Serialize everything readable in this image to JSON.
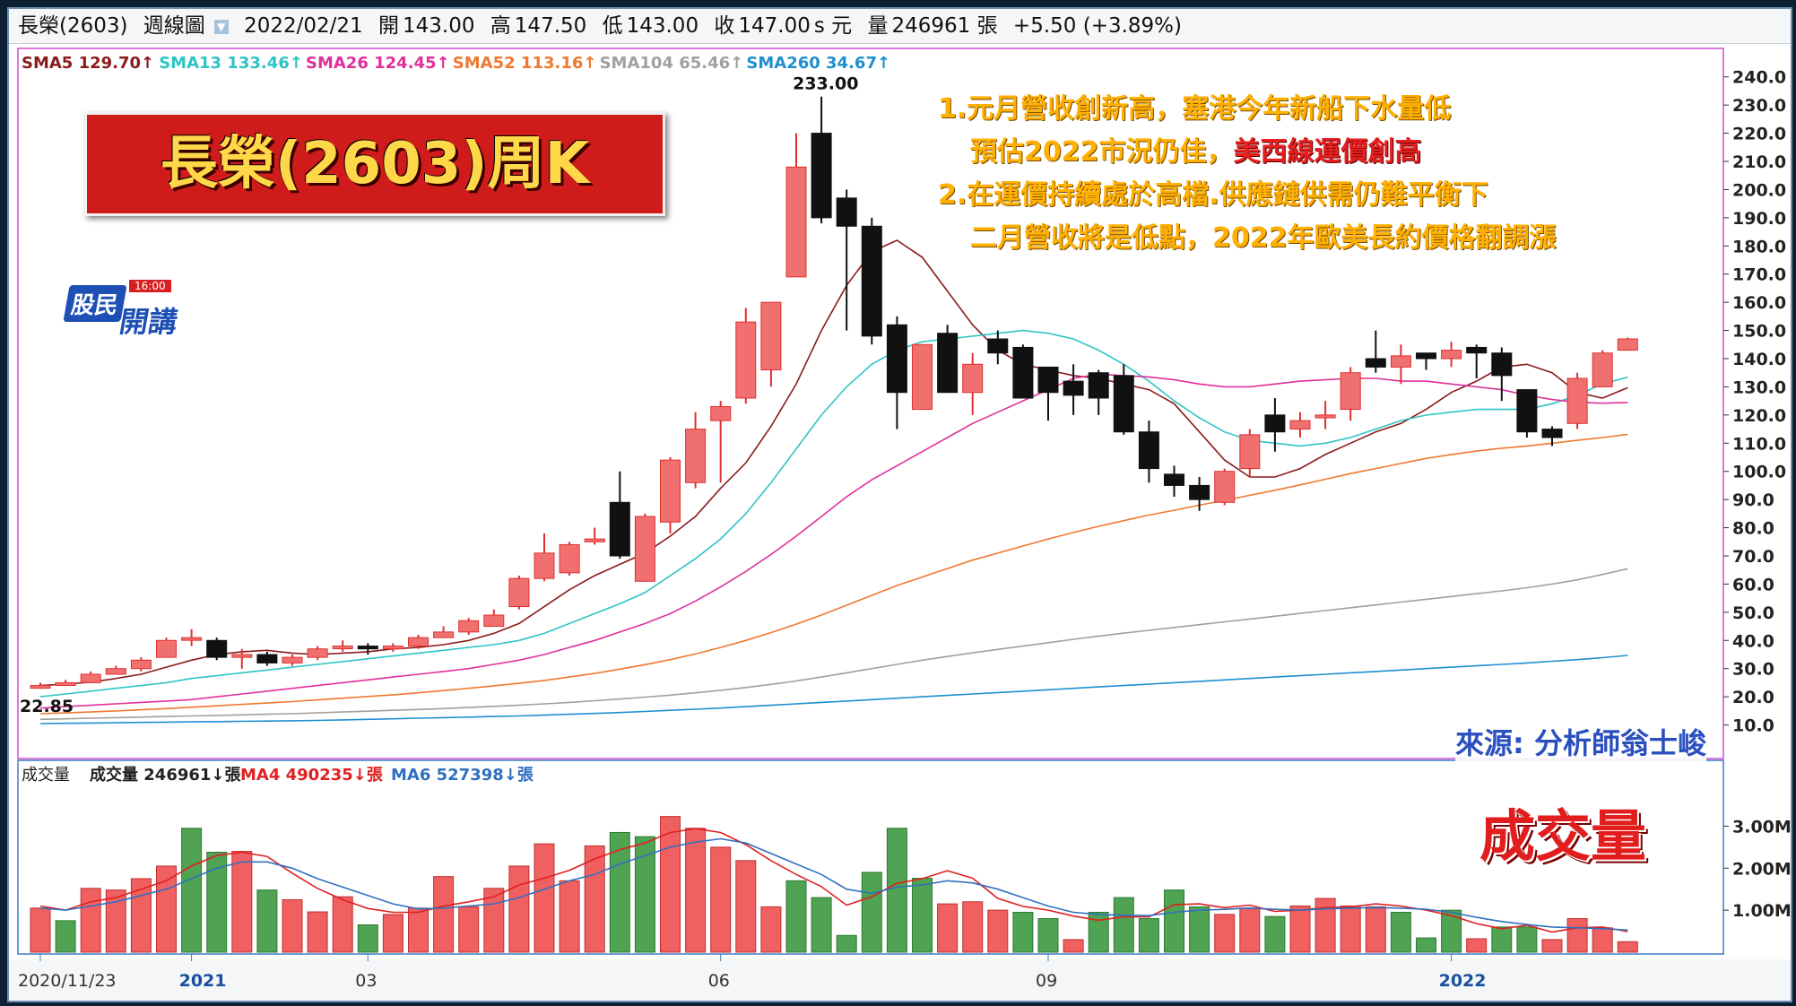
{
  "header": {
    "stock": "長榮(2603)",
    "period": "週線圖",
    "date": "2022/02/21",
    "open_label": "開",
    "open": "143.00",
    "high_label": "高",
    "high": "147.50",
    "low_label": "低",
    "low": "143.00",
    "close_label": "收",
    "close": "147.00",
    "close_unit": "s 元",
    "vol_label": "量",
    "volume": "246961 張",
    "change": "+5.50 (+3.89%)"
  },
  "title_box": "長榮(2603)周K",
  "logo": {
    "top": "股民",
    "badge": "16:00",
    "bottom": "開講"
  },
  "notes": {
    "line1": "1.元月營收創新高，塞港今年新船下水量低",
    "line2a": "預估2022市況仍佳，",
    "line2b": "美西線運價創高",
    "line3": "2.在運價持續處於高檔.供應鏈供需仍難平衡下",
    "line4": "二月營收將是低點，2022年歐美長約價格翻調漲"
  },
  "source": "來源: 分析師翁士峻",
  "volume_big_label": "成交量",
  "colors": {
    "up": "#f07070",
    "up_border": "#e03030",
    "down": "#111111",
    "vol_up": "#f06060",
    "vol_down": "#4fa352",
    "sma5": "#8b1a1a",
    "sma13": "#2ec4c4",
    "sma26": "#e0309a",
    "sma52": "#f07830",
    "sma104": "#a0a0a0",
    "sma260": "#1e8fd0",
    "ma4": "#e02020",
    "ma6": "#3070c0"
  },
  "chart_data": [
    {
      "type": "candlestick",
      "title": "",
      "x_labels": [
        {
          "week": 0,
          "label": "2020/11/23"
        },
        {
          "week": 6,
          "label": "2021"
        },
        {
          "week": 13,
          "label": "03"
        },
        {
          "week": 27,
          "label": "06"
        },
        {
          "week": 40,
          "label": "09"
        },
        {
          "week": 56,
          "label": "2022"
        }
      ],
      "ylim": [
        0,
        245
      ],
      "yticks": [
        10,
        20,
        30,
        40,
        50,
        60,
        70,
        80,
        90,
        100,
        110,
        120,
        130,
        140,
        150,
        160,
        170,
        180,
        190,
        200,
        210,
        220,
        230,
        240
      ],
      "ytick_labels": [
        "10.0",
        "20.0",
        "30.0",
        "40.0",
        "50.0",
        "60.0",
        "70.0",
        "80.0",
        "90.0",
        "100.0",
        "110.0",
        "120.0",
        "130.0",
        "140.0",
        "150.0",
        "160.0",
        "170.0",
        "180.0",
        "190.0",
        "200.0",
        "210.0",
        "220.0",
        "230.0",
        "240.0"
      ],
      "annotations": [
        {
          "week": 31,
          "value": 233,
          "text": "233.00"
        },
        {
          "week": 0,
          "value": 22.85,
          "text": "22.85"
        }
      ],
      "legend": [
        {
          "name": "SMA5",
          "value": "129.70↑"
        },
        {
          "name": "SMA13",
          "value": "133.46↑"
        },
        {
          "name": "SMA26",
          "value": "124.45↑"
        },
        {
          "name": "SMA52",
          "value": "113.16↑"
        },
        {
          "name": "SMA104",
          "value": "65.46↑"
        },
        {
          "name": "SMA260",
          "value": "34.67↑"
        }
      ],
      "ohlc": [
        [
          24,
          25,
          22.85,
          24
        ],
        [
          24,
          26,
          24,
          25
        ],
        [
          25,
          29,
          25,
          28
        ],
        [
          28,
          31,
          28,
          30
        ],
        [
          30,
          34,
          29,
          33
        ],
        [
          34,
          41,
          34,
          40
        ],
        [
          41,
          44,
          38,
          41
        ],
        [
          40,
          41,
          33,
          34
        ],
        [
          34,
          37,
          30,
          35
        ],
        [
          35,
          36,
          31,
          32
        ],
        [
          32,
          35,
          31,
          34
        ],
        [
          34,
          38,
          33,
          37
        ],
        [
          38,
          40,
          36,
          38
        ],
        [
          38,
          39,
          35,
          37
        ],
        [
          37,
          39,
          36,
          38
        ],
        [
          38,
          42,
          37,
          41
        ],
        [
          41,
          45,
          41,
          43
        ],
        [
          43,
          48,
          42,
          47
        ],
        [
          45,
          51,
          45,
          49
        ],
        [
          52,
          63,
          51,
          62
        ],
        [
          62,
          78,
          61,
          71
        ],
        [
          64,
          75,
          63,
          74
        ],
        [
          75,
          80,
          74,
          76
        ],
        [
          89,
          100,
          69,
          70
        ],
        [
          61,
          85,
          62,
          84
        ],
        [
          82,
          105,
          78,
          104
        ],
        [
          96,
          121,
          94,
          115
        ],
        [
          118,
          125,
          96,
          123
        ],
        [
          126,
          158,
          124,
          153
        ],
        [
          136,
          160,
          130,
          160
        ],
        [
          169,
          220,
          169,
          208
        ],
        [
          220,
          233,
          188,
          190
        ],
        [
          197,
          200,
          150,
          187
        ],
        [
          187,
          190,
          145,
          148
        ],
        [
          152,
          155,
          115,
          128
        ],
        [
          122,
          143,
          122,
          145
        ],
        [
          149,
          152,
          128,
          128
        ],
        [
          128,
          142,
          120,
          138
        ],
        [
          147,
          150,
          138,
          142
        ],
        [
          144,
          145,
          128,
          126
        ],
        [
          137,
          137,
          118,
          128
        ],
        [
          132,
          138,
          120,
          127
        ],
        [
          135,
          136,
          120,
          126
        ],
        [
          134,
          138,
          113,
          114
        ],
        [
          114,
          118,
          96,
          101
        ],
        [
          99,
          102,
          91,
          95
        ],
        [
          95,
          98,
          86,
          90
        ],
        [
          89,
          101,
          88,
          100
        ],
        [
          101,
          115,
          98,
          113
        ],
        [
          120,
          126,
          107,
          114
        ],
        [
          115,
          121,
          112,
          118
        ],
        [
          119,
          125,
          115,
          120
        ],
        [
          122,
          137,
          118,
          135
        ],
        [
          140,
          150,
          135,
          137
        ],
        [
          137,
          145,
          131,
          141
        ],
        [
          142,
          142,
          136,
          140
        ],
        [
          140,
          146,
          137,
          143
        ],
        [
          144,
          145,
          133,
          142
        ],
        [
          142,
          144,
          125,
          134
        ],
        [
          129,
          129,
          112,
          114
        ],
        [
          115,
          116,
          109,
          112
        ],
        [
          117,
          135,
          115,
          133
        ],
        [
          130,
          143,
          130,
          142
        ],
        [
          143,
          147.5,
          143,
          147
        ]
      ],
      "sma": {
        "SMA5": [
          24,
          24.5,
          25.2,
          26.5,
          28,
          30.5,
          33,
          35,
          36,
          36.5,
          35.5,
          35,
          35.5,
          36,
          37,
          37.5,
          38.5,
          40,
          42.5,
          46,
          52,
          58,
          63,
          67,
          71,
          77,
          84,
          94,
          103,
          116,
          131,
          150,
          166,
          178,
          182,
          176,
          164,
          152,
          143,
          138,
          136,
          134,
          133,
          131,
          129,
          124,
          114,
          104,
          98,
          98,
          101,
          106,
          110,
          114,
          117,
          122,
          128,
          132,
          137,
          138,
          135,
          128,
          126,
          129.7
        ],
        "SMA13": [
          20,
          21,
          22,
          23,
          24,
          25,
          26.5,
          27.5,
          28.5,
          29.5,
          30.5,
          31.5,
          32.5,
          33.5,
          34.5,
          35.5,
          36.5,
          37.5,
          38.5,
          40,
          42.5,
          46,
          49.5,
          53,
          57,
          63,
          69,
          76,
          85,
          96,
          108,
          120,
          130,
          138,
          143,
          146,
          147,
          148,
          149,
          150,
          149,
          147,
          143,
          138,
          132,
          125,
          119,
          114,
          111,
          110,
          109,
          110,
          112,
          115,
          118,
          120,
          121,
          122,
          122,
          122,
          124,
          127,
          131,
          133.46
        ],
        "SMA26": [
          16,
          16.5,
          17,
          17.5,
          18,
          18.5,
          19,
          20,
          21,
          22,
          23,
          24,
          25,
          26,
          27,
          28,
          29,
          30,
          31.5,
          33,
          35,
          37.5,
          40,
          43,
          46,
          49.5,
          54,
          59,
          64.5,
          70.5,
          77,
          84,
          91,
          97,
          102,
          107,
          112,
          117,
          121,
          125,
          129,
          133,
          134.5,
          134,
          133.5,
          132.5,
          131,
          130,
          130,
          131,
          132,
          132.5,
          133,
          133,
          132,
          132,
          131,
          130,
          129,
          127,
          125.5,
          124.5,
          124.2,
          124.45
        ],
        "SMA52": [
          14,
          14.3,
          14.6,
          15,
          15.4,
          15.8,
          16.3,
          16.8,
          17.3,
          17.8,
          18.3,
          18.9,
          19.5,
          20.1,
          20.7,
          21.4,
          22.2,
          23,
          23.9,
          24.8,
          25.8,
          27,
          28.3,
          29.8,
          31.4,
          33.2,
          35.2,
          37.5,
          40,
          42.8,
          45.8,
          49,
          52.5,
          56,
          59.5,
          62.5,
          65.5,
          68.5,
          71,
          73.5,
          76,
          78.3,
          80.5,
          82.5,
          84.5,
          86.2,
          88,
          89.7,
          91.5,
          93.3,
          95.2,
          97.2,
          99.2,
          101,
          102.8,
          104.6,
          106,
          107.2,
          108.2,
          109,
          110,
          111,
          112,
          113.16
        ],
        "SMA104": [
          12,
          12.2,
          12.4,
          12.6,
          12.8,
          13,
          13.2,
          13.4,
          13.6,
          13.8,
          14,
          14.3,
          14.6,
          14.9,
          15.2,
          15.5,
          15.8,
          16.2,
          16.6,
          17,
          17.5,
          18,
          18.6,
          19.2,
          19.9,
          20.6,
          21.4,
          22.3,
          23.3,
          24.4,
          25.6,
          27,
          28.5,
          30,
          31.5,
          33,
          34.3,
          35.6,
          36.8,
          38,
          39.2,
          40.4,
          41.5,
          42.6,
          43.6,
          44.6,
          45.6,
          46.6,
          47.6,
          48.6,
          49.6,
          50.6,
          51.6,
          52.6,
          53.6,
          54.6,
          55.6,
          56.6,
          57.6,
          58.7,
          60,
          61.5,
          63.4,
          65.46
        ],
        "SMA260": [
          10.5,
          10.6,
          10.7,
          10.8,
          10.9,
          11,
          11.1,
          11.2,
          11.3,
          11.4,
          11.5,
          11.6,
          11.8,
          12,
          12.2,
          12.4,
          12.6,
          12.8,
          13,
          13.2,
          13.5,
          13.8,
          14.1,
          14.4,
          14.8,
          15.2,
          15.6,
          16,
          16.5,
          17,
          17.5,
          18,
          18.5,
          19,
          19.5,
          20,
          20.5,
          21,
          21.5,
          22,
          22.5,
          23,
          23.5,
          24,
          24.5,
          25,
          25.5,
          26,
          26.5,
          27,
          27.5,
          28,
          28.5,
          29,
          29.5,
          30,
          30.5,
          31,
          31.5,
          32,
          32.6,
          33.2,
          33.9,
          34.67
        ]
      }
    },
    {
      "type": "bar",
      "title": "成交量",
      "legend": [
        {
          "name": "成交量",
          "value": "246961↓張"
        },
        {
          "name": "MA4",
          "value": "490235↓張"
        },
        {
          "name": "MA6",
          "value": "527398↓張"
        }
      ],
      "ylim": [
        0,
        3500000
      ],
      "yticks": [
        1000000,
        2000000,
        3000000
      ],
      "ytick_labels": [
        "1.00M",
        "2.00M",
        "3.00M"
      ],
      "volume": [
        1050000,
        750000,
        1520000,
        1480000,
        1750000,
        2050000,
        2950000,
        2380000,
        2400000,
        1480000,
        1250000,
        960000,
        1320000,
        650000,
        900000,
        1050000,
        1800000,
        1080000,
        1520000,
        2050000,
        2580000,
        1700000,
        2530000,
        2850000,
        2750000,
        3230000,
        2950000,
        2500000,
        2180000,
        1080000,
        1700000,
        1300000,
        400000,
        1900000,
        2950000,
        1760000,
        1150000,
        1200000,
        1000000,
        950000,
        800000,
        300000,
        950000,
        1300000,
        800000,
        1480000,
        1080000,
        900000,
        1050000,
        850000,
        1100000,
        1280000,
        1100000,
        1080000,
        950000,
        340000,
        1000000,
        320000,
        600000,
        600000,
        300000,
        800000,
        580000,
        250000
      ],
      "volume_up": [
        true,
        false,
        true,
        true,
        true,
        true,
        false,
        false,
        true,
        false,
        true,
        true,
        true,
        false,
        true,
        true,
        true,
        true,
        true,
        true,
        true,
        true,
        true,
        false,
        false,
        true,
        true,
        true,
        true,
        true,
        false,
        false,
        false,
        false,
        false,
        false,
        true,
        true,
        true,
        false,
        false,
        true,
        false,
        false,
        false,
        false,
        false,
        true,
        true,
        false,
        true,
        true,
        true,
        true,
        false,
        false,
        false,
        true,
        false,
        false,
        true,
        true,
        true,
        true
      ],
      "ma4": [
        1100000,
        1000000,
        1200000,
        1300000,
        1500000,
        1700000,
        2050000,
        2300000,
        2380000,
        2280000,
        1880000,
        1520000,
        1250000,
        1040000,
        950000,
        950000,
        1100000,
        1200000,
        1320000,
        1600000,
        1760000,
        1950000,
        2220000,
        2440000,
        2600000,
        2850000,
        2940000,
        2850000,
        2560000,
        2180000,
        1850000,
        1560000,
        1120000,
        1320000,
        1640000,
        1750000,
        1940000,
        1760000,
        1280000,
        1090000,
        1000000,
        860000,
        760000,
        840000,
        840000,
        1130000,
        1150000,
        1060000,
        1120000,
        970000,
        1000000,
        1060000,
        1080000,
        1150000,
        1100000,
        1000000,
        870000,
        680000,
        560000,
        640000,
        480000,
        580000,
        600000,
        490235
      ],
      "ma6": [
        1050000,
        1000000,
        1100000,
        1200000,
        1350000,
        1500000,
        1750000,
        2000000,
        2150000,
        2150000,
        2000000,
        1750000,
        1550000,
        1350000,
        1150000,
        1030000,
        1050000,
        1100000,
        1150000,
        1300000,
        1500000,
        1700000,
        1850000,
        2100000,
        2300000,
        2500000,
        2620000,
        2700000,
        2600000,
        2350000,
        2100000,
        1850000,
        1500000,
        1400000,
        1550000,
        1600000,
        1700000,
        1650000,
        1500000,
        1300000,
        1100000,
        950000,
        900000,
        880000,
        870000,
        950000,
        1000000,
        1020000,
        1050000,
        1020000,
        1000000,
        1030000,
        1050000,
        1060000,
        1050000,
        1020000,
        950000,
        830000,
        730000,
        660000,
        600000,
        580000,
        560000,
        527398
      ]
    }
  ]
}
